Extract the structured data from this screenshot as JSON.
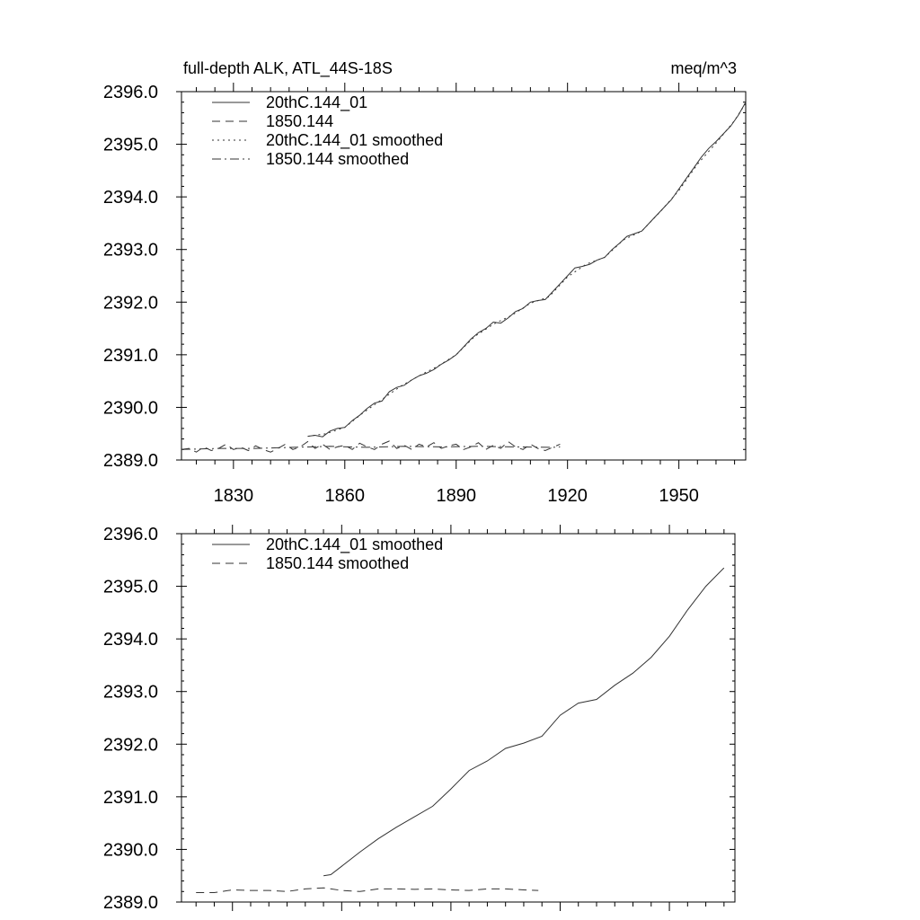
{
  "chart_data": [
    {
      "type": "line",
      "title": "full-depth ALK, ATL_44S-18S",
      "units": "meq/m^3",
      "xlim": [
        1816,
        1968
      ],
      "ylim": [
        2389.0,
        2396.0
      ],
      "x_ticks": [
        1830,
        1860,
        1890,
        1920,
        1950
      ],
      "y_ticks": [
        "2389.0",
        "2390.0",
        "2391.0",
        "2392.0",
        "2393.0",
        "2394.0",
        "2395.0",
        "2396.0"
      ],
      "legend_position": "top-left",
      "legend": [
        "20thC.144_01",
        "1850.144",
        "20thC.144_01 smoothed",
        "1850.144 smoothed"
      ],
      "series": [
        {
          "name": "20thC.144_01",
          "style": "solid",
          "x": [
            1850,
            1852,
            1854,
            1856,
            1858,
            1860,
            1862,
            1864,
            1866,
            1868,
            1870,
            1872,
            1874,
            1876,
            1878,
            1880,
            1882,
            1884,
            1886,
            1888,
            1890,
            1892,
            1894,
            1896,
            1898,
            1900,
            1902,
            1904,
            1906,
            1908,
            1910,
            1912,
            1914,
            1916,
            1918,
            1920,
            1922,
            1924,
            1926,
            1928,
            1930,
            1932,
            1934,
            1936,
            1938,
            1940,
            1942,
            1944,
            1946,
            1948,
            1950,
            1952,
            1954,
            1956,
            1958,
            1960,
            1962,
            1964,
            1966,
            1968
          ],
          "values": [
            2389.45,
            2389.47,
            2389.44,
            2389.55,
            2389.6,
            2389.62,
            2389.75,
            2389.85,
            2389.98,
            2390.08,
            2390.12,
            2390.3,
            2390.38,
            2390.42,
            2390.52,
            2390.6,
            2390.65,
            2390.72,
            2390.82,
            2390.9,
            2391.0,
            2391.15,
            2391.3,
            2391.42,
            2391.5,
            2391.62,
            2391.6,
            2391.7,
            2391.82,
            2391.88,
            2392.0,
            2392.03,
            2392.05,
            2392.2,
            2392.35,
            2392.5,
            2392.65,
            2392.68,
            2392.72,
            2392.8,
            2392.85,
            2393.0,
            2393.12,
            2393.25,
            2393.3,
            2393.35,
            2393.5,
            2393.65,
            2393.8,
            2393.95,
            2394.15,
            2394.35,
            2394.55,
            2394.75,
            2394.92,
            2395.05,
            2395.2,
            2395.35,
            2395.55,
            2395.8
          ]
        },
        {
          "name": "1850.144",
          "style": "dashed",
          "x": [
            1816,
            1818,
            1820,
            1822,
            1824,
            1826,
            1828,
            1830,
            1832,
            1834,
            1836,
            1838,
            1840,
            1842,
            1844,
            1846,
            1848,
            1850,
            1852,
            1854,
            1856,
            1858,
            1860,
            1862,
            1864,
            1866,
            1868,
            1870,
            1872,
            1874,
            1876,
            1878,
            1880,
            1882,
            1884,
            1886,
            1888,
            1890,
            1892,
            1894,
            1896,
            1898,
            1900,
            1902,
            1904,
            1906,
            1908,
            1910,
            1912,
            1914,
            1916,
            1918
          ],
          "values": [
            2389.2,
            2389.22,
            2389.15,
            2389.25,
            2389.18,
            2389.22,
            2389.3,
            2389.2,
            2389.24,
            2389.18,
            2389.27,
            2389.2,
            2389.15,
            2389.22,
            2389.3,
            2389.2,
            2389.25,
            2389.35,
            2389.22,
            2389.3,
            2389.2,
            2389.25,
            2389.28,
            2389.2,
            2389.32,
            2389.25,
            2389.2,
            2389.3,
            2389.36,
            2389.22,
            2389.28,
            2389.2,
            2389.3,
            2389.25,
            2389.33,
            2389.22,
            2389.27,
            2389.3,
            2389.2,
            2389.25,
            2389.33,
            2389.2,
            2389.28,
            2389.22,
            2389.35,
            2389.25,
            2389.2,
            2389.3,
            2389.22,
            2389.18,
            2389.24,
            2389.3
          ]
        },
        {
          "name": "20thC.144_01 smoothed",
          "style": "dotted",
          "x": [
            1850,
            1855,
            1860,
            1865,
            1870,
            1875,
            1880,
            1885,
            1890,
            1895,
            1900,
            1905,
            1910,
            1915,
            1920,
            1925,
            1930,
            1935,
            1940,
            1945,
            1950,
            1955,
            1960,
            1965,
            1968
          ],
          "values": [
            2389.45,
            2389.5,
            2389.62,
            2389.9,
            2390.15,
            2390.4,
            2390.6,
            2390.78,
            2391.0,
            2391.35,
            2391.58,
            2391.75,
            2391.98,
            2392.1,
            2392.48,
            2392.72,
            2392.85,
            2393.18,
            2393.35,
            2393.72,
            2394.12,
            2394.62,
            2395.02,
            2395.45,
            2395.78
          ]
        },
        {
          "name": "1850.144 smoothed",
          "style": "dashdot",
          "x": [
            1816,
            1826,
            1836,
            1846,
            1856,
            1866,
            1876,
            1886,
            1896,
            1906,
            1916,
            1918
          ],
          "values": [
            2389.2,
            2389.22,
            2389.22,
            2389.24,
            2389.26,
            2389.24,
            2389.26,
            2389.25,
            2389.26,
            2389.25,
            2389.24,
            2389.25
          ]
        }
      ]
    },
    {
      "type": "line",
      "xlim": [
        1816,
        1968
      ],
      "ylim": [
        2389.0,
        2396.0
      ],
      "y_ticks": [
        "2389.0",
        "2390.0",
        "2391.0",
        "2392.0",
        "2393.0",
        "2394.0",
        "2395.0",
        "2396.0"
      ],
      "legend_position": "top-left",
      "legend": [
        "20thC.144_01 smoothed",
        "1850.144 smoothed"
      ],
      "series": [
        {
          "name": "20thC.144_01 smoothed",
          "style": "solid",
          "x": [
            1855,
            1857,
            1860,
            1865,
            1870,
            1875,
            1880,
            1885,
            1890,
            1895,
            1900,
            1905,
            1910,
            1915,
            1920,
            1925,
            1930,
            1935,
            1940,
            1945,
            1950,
            1955,
            1960,
            1965
          ],
          "values": [
            2389.5,
            2389.52,
            2389.68,
            2389.95,
            2390.2,
            2390.42,
            2390.62,
            2390.82,
            2391.15,
            2391.5,
            2391.68,
            2391.92,
            2392.02,
            2392.15,
            2392.55,
            2392.78,
            2392.85,
            2393.12,
            2393.35,
            2393.65,
            2394.05,
            2394.55,
            2395.0,
            2395.35
          ]
        },
        {
          "name": "1850.144 smoothed",
          "style": "dashed",
          "x": [
            1820,
            1825,
            1830,
            1835,
            1840,
            1845,
            1850,
            1855,
            1860,
            1865,
            1870,
            1875,
            1880,
            1885,
            1890,
            1895,
            1900,
            1905,
            1910,
            1914
          ],
          "values": [
            2389.18,
            2389.18,
            2389.23,
            2389.22,
            2389.22,
            2389.2,
            2389.25,
            2389.27,
            2389.22,
            2389.2,
            2389.25,
            2389.25,
            2389.24,
            2389.25,
            2389.23,
            2389.22,
            2389.25,
            2389.25,
            2389.23,
            2389.22
          ]
        }
      ]
    }
  ]
}
